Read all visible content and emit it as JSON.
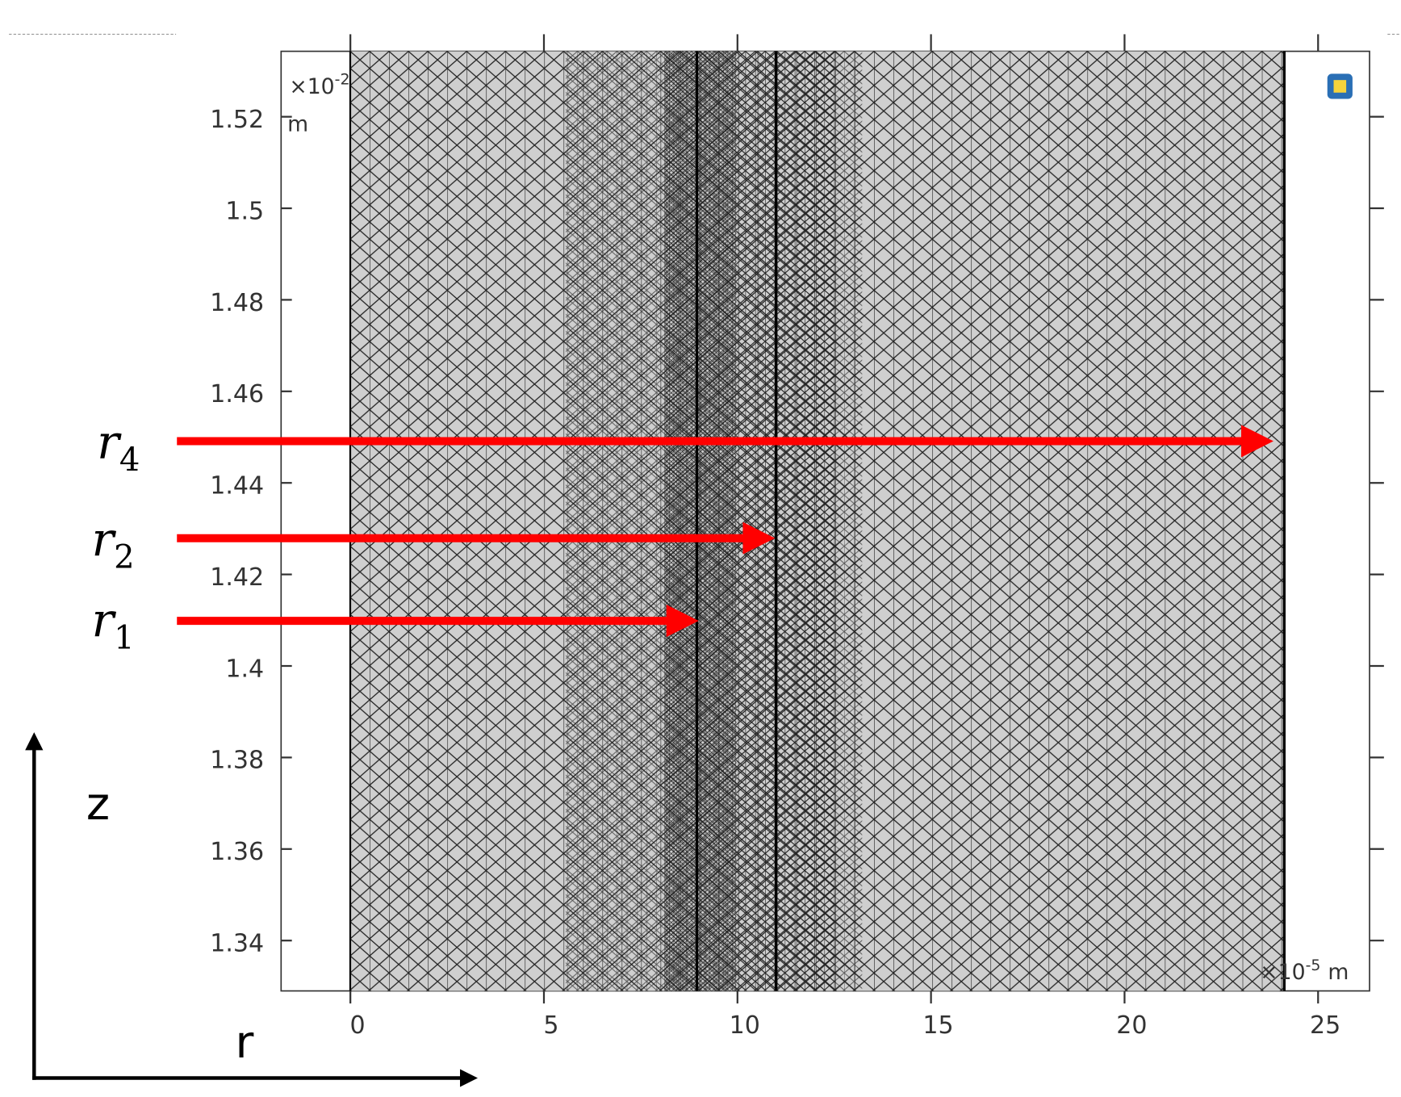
{
  "plot": {
    "xlim": [
      -1.79,
      26.33
    ],
    "ylim": [
      1.329,
      1.5343
    ],
    "xticks": [
      0,
      5,
      10,
      15,
      20,
      25
    ],
    "yticks": [
      1.34,
      1.36,
      1.38,
      1.4,
      1.42,
      1.44,
      1.46,
      1.48,
      1.5,
      1.52
    ],
    "x_scale": {
      "base": "×10",
      "exponent": "-5",
      "unit": "m"
    },
    "y_scale": {
      "base": "×10",
      "exponent": "-2",
      "unit": "m"
    }
  },
  "annotations": [
    {
      "symbol": "r",
      "subscript": "4"
    },
    {
      "symbol": "r",
      "subscript": "2"
    },
    {
      "symbol": "r",
      "subscript": "1"
    }
  ],
  "axes_indicator": {
    "vertical": "z",
    "horizontal": "r"
  }
}
